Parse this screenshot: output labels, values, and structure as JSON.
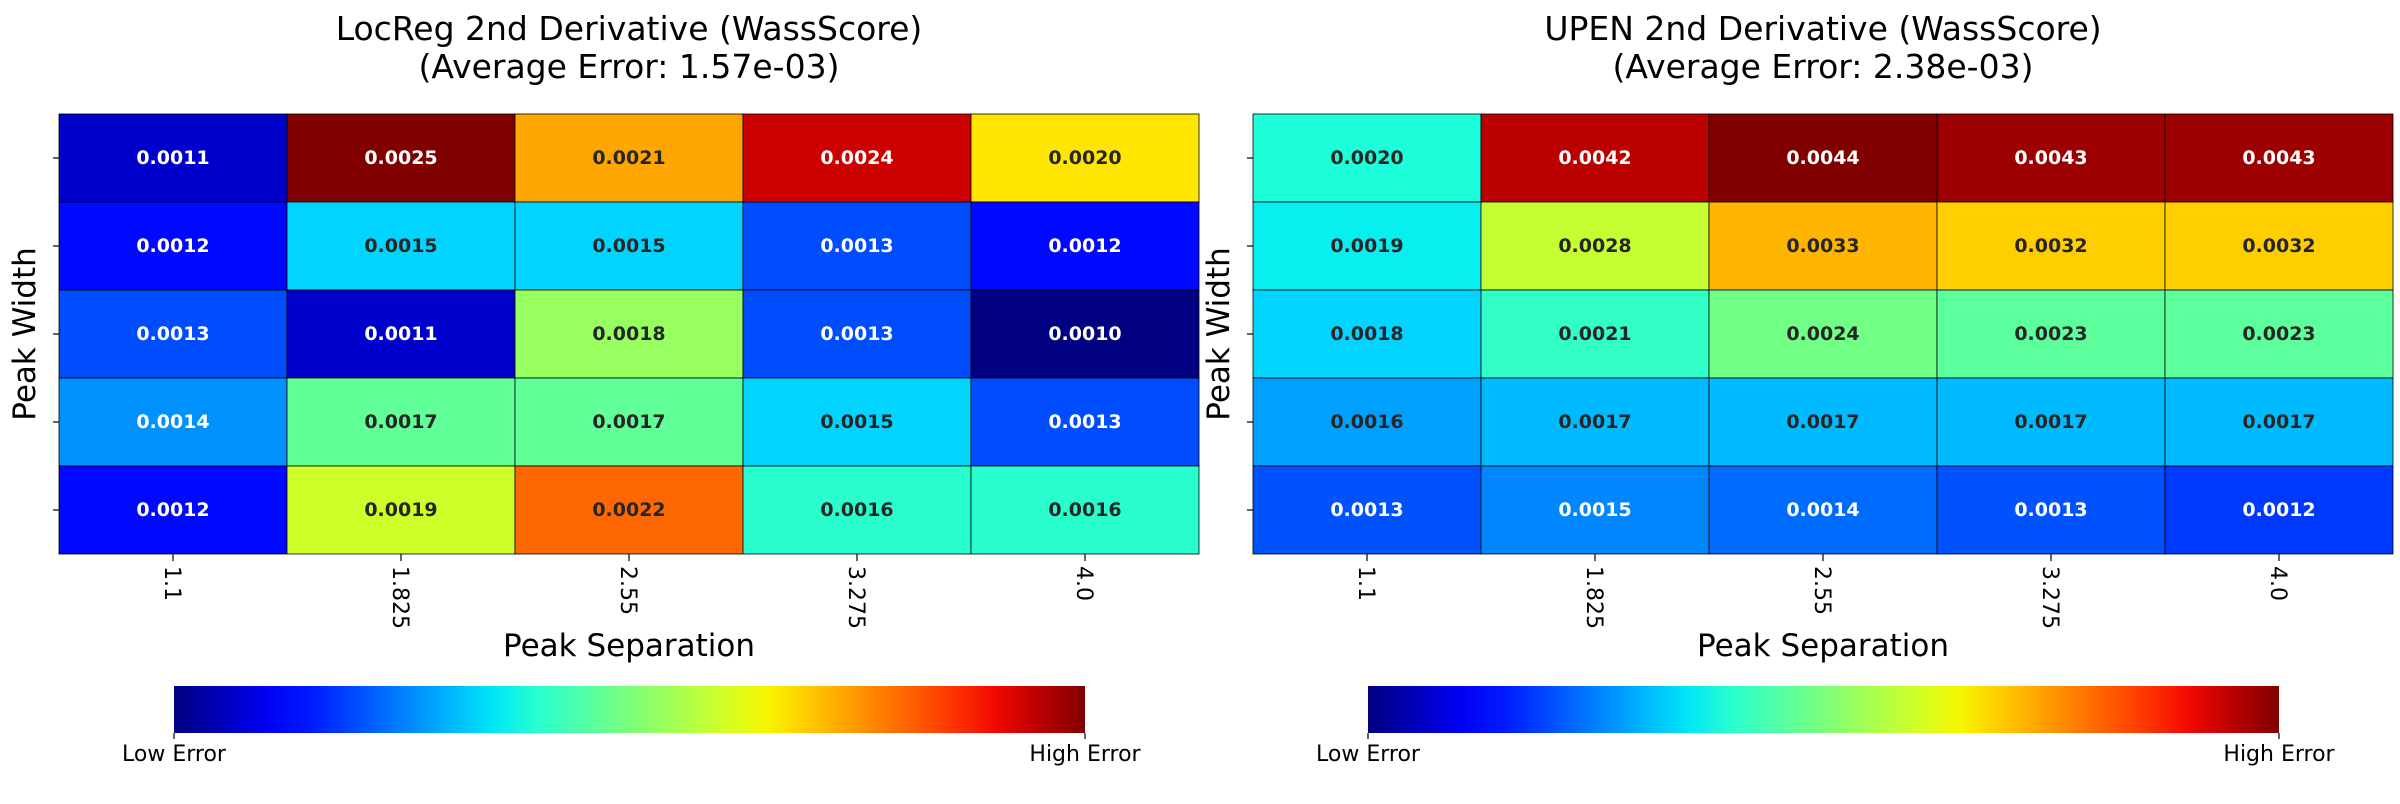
{
  "colorbar_labels": {
    "low": "Low Error",
    "high": "High Error"
  },
  "chart_data": [
    {
      "type": "heatmap",
      "title": "LocReg 2nd Derivative (WassScore)",
      "subtitle": "(Average Error: 1.57e-03)",
      "xlabel": "Peak Separation",
      "ylabel": "Peak Width",
      "x": [
        "1.1",
        "1.825",
        "2.55",
        "3.275",
        "4.0"
      ],
      "y": [
        "",
        "",
        "",
        "",
        ""
      ],
      "vmin": 0.001,
      "vmax": 0.0025,
      "colormap": "jet",
      "values": [
        [
          "0.0011",
          "0.0025",
          "0.0021",
          "0.0024",
          "0.0020"
        ],
        [
          "0.0012",
          "0.0015",
          "0.0015",
          "0.0013",
          "0.0012"
        ],
        [
          "0.0013",
          "0.0011",
          "0.0018",
          "0.0013",
          "0.0010"
        ],
        [
          "0.0014",
          "0.0017",
          "0.0017",
          "0.0015",
          "0.0013"
        ],
        [
          "0.0012",
          "0.0019",
          "0.0022",
          "0.0016",
          "0.0016"
        ]
      ]
    },
    {
      "type": "heatmap",
      "title": "UPEN 2nd Derivative (WassScore)",
      "subtitle": "(Average Error: 2.38e-03)",
      "xlabel": "Peak Separation",
      "ylabel": "Peak Width",
      "x": [
        "1.1",
        "1.825",
        "2.55",
        "3.275",
        "4.0"
      ],
      "y": [
        "",
        "",
        "",
        "",
        ""
      ],
      "vmin": 0.0005,
      "vmax": 0.0044,
      "colormap": "jet",
      "values": [
        [
          "0.0020",
          "0.0042",
          "0.0044",
          "0.0043",
          "0.0043"
        ],
        [
          "0.0019",
          "0.0028",
          "0.0033",
          "0.0032",
          "0.0032"
        ],
        [
          "0.0018",
          "0.0021",
          "0.0024",
          "0.0023",
          "0.0023"
        ],
        [
          "0.0016",
          "0.0017",
          "0.0017",
          "0.0017",
          "0.0017"
        ],
        [
          "0.0013",
          "0.0015",
          "0.0014",
          "0.0013",
          "0.0012"
        ]
      ]
    }
  ]
}
